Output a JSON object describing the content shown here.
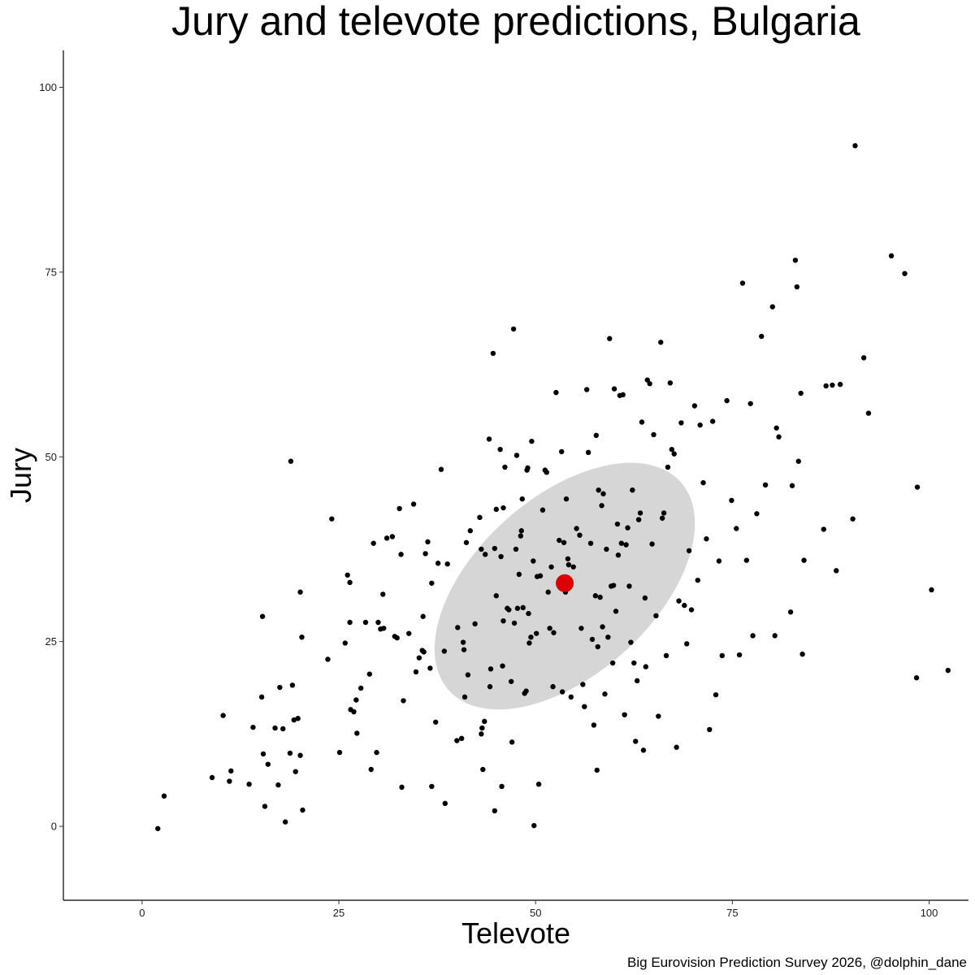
{
  "chart_data": {
    "type": "scatter",
    "title": "Jury and televote predictions, Bulgaria",
    "xlabel": "Televote",
    "ylabel": "Jury",
    "caption": "Big Eurovision Prediction Survey 2026, @dolphin_dane",
    "xlim": [
      -10,
      105
    ],
    "ylim": [
      -10,
      105
    ],
    "x_ticks": [
      0,
      25,
      50,
      75,
      100
    ],
    "y_ticks": [
      0,
      25,
      50,
      75,
      100
    ],
    "grid": false,
    "colors": {
      "points": "#000000",
      "mean": "#dd0000",
      "ellipse": "#d6d6d6"
    },
    "mean": {
      "x": 53.7,
      "y": 32.9
    },
    "ellipse": {
      "center": [
        53.7,
        32.5
      ],
      "radii": [
        19.8,
        12.0
      ],
      "angle_deg": 42
    },
    "points": [
      [
        2.0,
        -0.3
      ],
      [
        2.8,
        4.1
      ],
      [
        8.9,
        6.6
      ],
      [
        10.3,
        15.0
      ],
      [
        11.1,
        6.1
      ],
      [
        11.3,
        7.5
      ],
      [
        13.6,
        5.7
      ],
      [
        14.1,
        13.4
      ],
      [
        15.2,
        17.5
      ],
      [
        15.3,
        28.4
      ],
      [
        15.4,
        9.8
      ],
      [
        15.6,
        2.7
      ],
      [
        16.0,
        8.4
      ],
      [
        16.9,
        13.3
      ],
      [
        17.3,
        5.6
      ],
      [
        17.5,
        18.8
      ],
      [
        17.9,
        13.2
      ],
      [
        18.2,
        0.6
      ],
      [
        18.8,
        9.9
      ],
      [
        18.9,
        49.4
      ],
      [
        19.1,
        19.1
      ],
      [
        19.3,
        14.4
      ],
      [
        19.5,
        7.4
      ],
      [
        19.8,
        14.6
      ],
      [
        20.1,
        9.6
      ],
      [
        20.1,
        31.7
      ],
      [
        20.3,
        25.6
      ],
      [
        20.4,
        2.2
      ],
      [
        23.6,
        22.6
      ],
      [
        24.1,
        41.6
      ],
      [
        25.1,
        10.0
      ],
      [
        25.8,
        24.8
      ],
      [
        26.1,
        34.0
      ],
      [
        26.4,
        33.0
      ],
      [
        26.4,
        27.6
      ],
      [
        26.5,
        15.8
      ],
      [
        26.9,
        15.5
      ],
      [
        27.2,
        17.1
      ],
      [
        27.3,
        12.6
      ],
      [
        27.8,
        18.7
      ],
      [
        28.4,
        27.6
      ],
      [
        29.1,
        7.7
      ],
      [
        29.4,
        38.3
      ],
      [
        29.8,
        10.0
      ],
      [
        30.0,
        27.6
      ],
      [
        30.3,
        26.7
      ],
      [
        30.6,
        31.4
      ],
      [
        30.7,
        26.8
      ],
      [
        31.1,
        39.0
      ],
      [
        31.8,
        39.2
      ],
      [
        32.1,
        25.7
      ],
      [
        32.4,
        25.5
      ],
      [
        32.7,
        43.0
      ],
      [
        32.9,
        36.8
      ],
      [
        33.0,
        5.3
      ],
      [
        33.2,
        17.0
      ],
      [
        33.9,
        26.1
      ],
      [
        34.5,
        43.6
      ],
      [
        34.8,
        20.9
      ],
      [
        35.2,
        22.8
      ],
      [
        35.7,
        28.4
      ],
      [
        35.8,
        23.6
      ],
      [
        36.0,
        36.9
      ],
      [
        36.3,
        38.5
      ],
      [
        36.6,
        21.4
      ],
      [
        36.8,
        32.9
      ],
      [
        36.8,
        5.4
      ],
      [
        37.3,
        14.1
      ],
      [
        37.6,
        35.6
      ],
      [
        38.0,
        48.3
      ],
      [
        38.4,
        23.7
      ],
      [
        38.5,
        3.1
      ],
      [
        38.8,
        35.5
      ],
      [
        40.0,
        11.6
      ],
      [
        40.1,
        26.9
      ],
      [
        40.6,
        11.9
      ],
      [
        40.8,
        24.9
      ],
      [
        40.9,
        23.9
      ],
      [
        41.0,
        17.5
      ],
      [
        41.2,
        38.4
      ],
      [
        41.4,
        20.5
      ],
      [
        41.7,
        40.0
      ],
      [
        42.3,
        27.4
      ],
      [
        42.9,
        41.8
      ],
      [
        43.1,
        12.5
      ],
      [
        43.1,
        37.5
      ],
      [
        43.2,
        13.3
      ],
      [
        43.3,
        7.7
      ],
      [
        43.5,
        14.2
      ],
      [
        43.6,
        36.8
      ],
      [
        44.1,
        52.4
      ],
      [
        44.2,
        18.9
      ],
      [
        44.3,
        21.3
      ],
      [
        44.6,
        64.0
      ],
      [
        44.8,
        2.1
      ],
      [
        44.8,
        37.6
      ],
      [
        45.0,
        42.9
      ],
      [
        45.0,
        31.2
      ],
      [
        45.5,
        51.0
      ],
      [
        45.6,
        36.5
      ],
      [
        45.7,
        5.4
      ],
      [
        45.8,
        21.7
      ],
      [
        45.9,
        27.8
      ],
      [
        45.9,
        43.1
      ],
      [
        46.1,
        48.6
      ],
      [
        46.4,
        29.5
      ],
      [
        46.6,
        29.3
      ],
      [
        47.0,
        11.4
      ],
      [
        47.2,
        67.3
      ],
      [
        47.3,
        27.5
      ],
      [
        47.5,
        37.5
      ],
      [
        47.6,
        50.2
      ],
      [
        47.7,
        29.5
      ],
      [
        47.9,
        34.1
      ],
      [
        48.1,
        39.3
      ],
      [
        48.2,
        40.0
      ],
      [
        48.3,
        44.3
      ],
      [
        48.4,
        29.6
      ],
      [
        48.6,
        18.0
      ],
      [
        48.8,
        18.3
      ],
      [
        48.9,
        48.2
      ],
      [
        49.0,
        48.5
      ],
      [
        49.1,
        28.8
      ],
      [
        49.2,
        24.8
      ],
      [
        49.4,
        25.6
      ],
      [
        49.5,
        52.1
      ],
      [
        49.7,
        35.9
      ],
      [
        49.8,
        0.1
      ],
      [
        50.1,
        26.1
      ],
      [
        50.2,
        33.8
      ],
      [
        50.4,
        5.7
      ],
      [
        50.6,
        33.9
      ],
      [
        50.9,
        42.8
      ],
      [
        51.2,
        48.2
      ],
      [
        51.4,
        47.9
      ],
      [
        51.6,
        31.7
      ],
      [
        51.8,
        26.8
      ],
      [
        52.0,
        35.1
      ],
      [
        52.2,
        18.9
      ],
      [
        52.3,
        26.2
      ],
      [
        52.6,
        58.7
      ],
      [
        53.0,
        38.7
      ],
      [
        53.3,
        50.7
      ],
      [
        53.4,
        18.2
      ],
      [
        53.5,
        33.2
      ],
      [
        53.6,
        38.4
      ],
      [
        53.8,
        31.7
      ],
      [
        53.9,
        44.3
      ],
      [
        54.1,
        36.2
      ],
      [
        54.2,
        35.4
      ],
      [
        54.5,
        17.5
      ],
      [
        54.8,
        35.1
      ],
      [
        55.2,
        40.3
      ],
      [
        55.6,
        39.4
      ],
      [
        55.8,
        26.8
      ],
      [
        56.0,
        19.2
      ],
      [
        56.2,
        16.2
      ],
      [
        56.5,
        59.1
      ],
      [
        56.7,
        50.6
      ],
      [
        57.0,
        38.3
      ],
      [
        57.2,
        25.3
      ],
      [
        57.4,
        13.7
      ],
      [
        57.6,
        31.2
      ],
      [
        57.7,
        52.9
      ],
      [
        57.8,
        7.6
      ],
      [
        57.9,
        24.3
      ],
      [
        58.0,
        45.5
      ],
      [
        58.2,
        31.0
      ],
      [
        58.4,
        43.4
      ],
      [
        58.5,
        27.0
      ],
      [
        58.6,
        45.0
      ],
      [
        58.8,
        17.9
      ],
      [
        59.0,
        37.5
      ],
      [
        59.2,
        25.6
      ],
      [
        59.4,
        66.0
      ],
      [
        59.6,
        32.5
      ],
      [
        59.8,
        22.1
      ],
      [
        60.0,
        59.2
      ],
      [
        60.2,
        29.1
      ],
      [
        60.4,
        40.9
      ],
      [
        60.5,
        36.7
      ],
      [
        60.7,
        58.3
      ],
      [
        60.9,
        38.3
      ],
      [
        61.1,
        58.4
      ],
      [
        61.3,
        15.1
      ],
      [
        61.5,
        38.1
      ],
      [
        61.7,
        40.4
      ],
      [
        61.9,
        32.5
      ],
      [
        62.1,
        24.9
      ],
      [
        62.3,
        45.5
      ],
      [
        62.5,
        22.1
      ],
      [
        62.7,
        11.5
      ],
      [
        62.9,
        19.7
      ],
      [
        63.1,
        41.5
      ],
      [
        63.3,
        42.4
      ],
      [
        63.5,
        54.7
      ],
      [
        63.7,
        10.3
      ],
      [
        63.9,
        30.9
      ],
      [
        64.0,
        21.6
      ],
      [
        64.2,
        60.4
      ],
      [
        64.5,
        59.9
      ],
      [
        64.8,
        38.2
      ],
      [
        65.0,
        53.0
      ],
      [
        65.3,
        28.5
      ],
      [
        65.6,
        14.9
      ],
      [
        65.9,
        65.5
      ],
      [
        66.1,
        41.7
      ],
      [
        66.3,
        42.4
      ],
      [
        66.6,
        23.1
      ],
      [
        66.8,
        48.6
      ],
      [
        67.1,
        60.0
      ],
      [
        67.3,
        51.0
      ],
      [
        67.6,
        50.4
      ],
      [
        67.9,
        10.7
      ],
      [
        68.2,
        30.5
      ],
      [
        68.5,
        54.6
      ],
      [
        68.9,
        29.9
      ],
      [
        69.2,
        24.7
      ],
      [
        69.5,
        37.3
      ],
      [
        69.8,
        29.3
      ],
      [
        70.2,
        56.9
      ],
      [
        70.6,
        33.3
      ],
      [
        70.9,
        54.3
      ],
      [
        71.3,
        46.5
      ],
      [
        71.7,
        38.9
      ],
      [
        72.1,
        13.1
      ],
      [
        72.5,
        54.8
      ],
      [
        72.9,
        17.8
      ],
      [
        73.3,
        35.9
      ],
      [
        73.7,
        23.1
      ],
      [
        74.3,
        57.6
      ],
      [
        74.9,
        44.1
      ],
      [
        75.5,
        40.3
      ],
      [
        75.9,
        23.2
      ],
      [
        76.3,
        73.5
      ],
      [
        76.8,
        36.0
      ],
      [
        77.3,
        57.2
      ],
      [
        77.6,
        25.8
      ],
      [
        78.1,
        42.3
      ],
      [
        78.7,
        66.3
      ],
      [
        79.2,
        46.2
      ],
      [
        80.1,
        70.3
      ],
      [
        80.4,
        25.8
      ],
      [
        80.6,
        53.9
      ],
      [
        80.9,
        52.7
      ],
      [
        82.4,
        29.0
      ],
      [
        82.6,
        46.1
      ],
      [
        83.0,
        76.6
      ],
      [
        83.2,
        73.0
      ],
      [
        83.4,
        49.4
      ],
      [
        83.7,
        58.6
      ],
      [
        83.9,
        23.3
      ],
      [
        84.1,
        36.0
      ],
      [
        86.6,
        40.2
      ],
      [
        86.9,
        59.6
      ],
      [
        87.7,
        59.7
      ],
      [
        88.2,
        34.6
      ],
      [
        88.7,
        59.8
      ],
      [
        90.3,
        41.6
      ],
      [
        90.6,
        92.1
      ],
      [
        91.7,
        63.4
      ],
      [
        92.3,
        55.9
      ],
      [
        95.2,
        77.2
      ],
      [
        96.9,
        74.8
      ],
      [
        98.4,
        20.1
      ],
      [
        98.5,
        45.9
      ],
      [
        100.3,
        32.0
      ],
      [
        102.4,
        21.1
      ],
      [
        35.6,
        23.8
      ],
      [
        28.9,
        20.6
      ],
      [
        46.9,
        19.6
      ],
      [
        59.9,
        32.6
      ]
    ]
  }
}
